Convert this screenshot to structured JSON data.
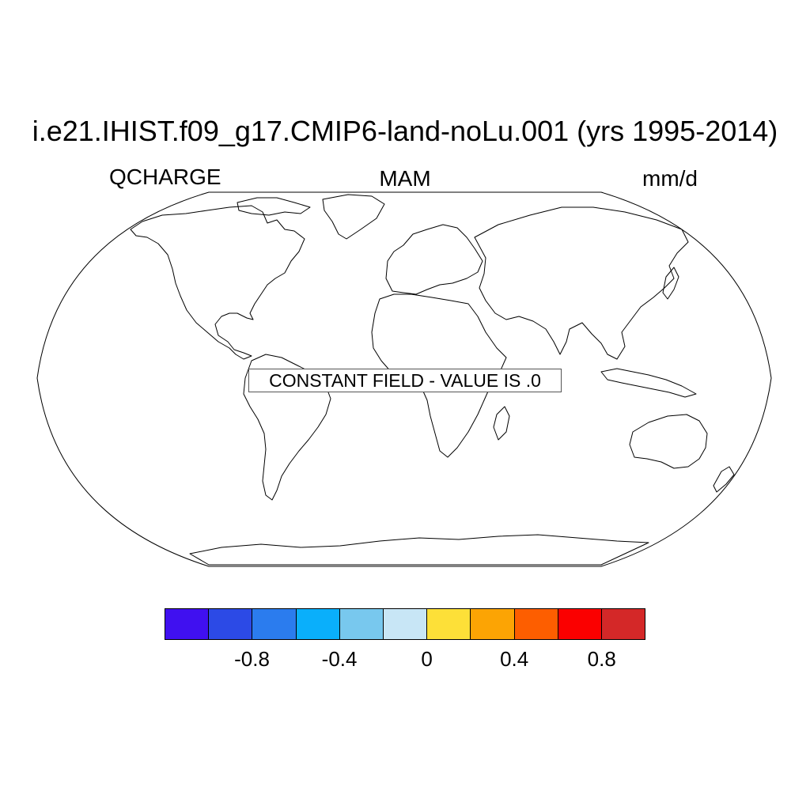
{
  "title": "i.e21.IHIST.f09_g17.CMIP6-land-noLu.001 (yrs 1995-2014)",
  "variable": "QCHARGE",
  "season": "MAM",
  "units": "mm/d",
  "notice": "CONSTANT FIELD - VALUE IS .0",
  "projection": "Robinson",
  "colorbar": {
    "colors": [
      "#4010f0",
      "#2c4ae6",
      "#2b7cee",
      "#0aaffb",
      "#78c8ee",
      "#c8e6f6",
      "#fde038",
      "#fca404",
      "#fd5e00",
      "#fb0000",
      "#d42828"
    ],
    "tick_labels": [
      "-0.8",
      "-0.4",
      "0",
      "0.4",
      "0.8"
    ]
  }
}
